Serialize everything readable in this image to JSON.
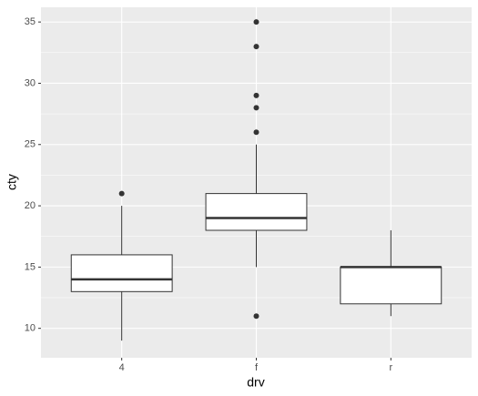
{
  "chart_data": {
    "type": "box",
    "x_label": "drv",
    "y_label": "cty",
    "categories": [
      "4",
      "f",
      "r"
    ],
    "boxes": [
      {
        "low": 9,
        "q1": 13,
        "median": 14,
        "q3": 16,
        "high": 20,
        "outliers": [
          21
        ]
      },
      {
        "low": 15,
        "q1": 18,
        "median": 19,
        "q3": 21,
        "high": 25,
        "outliers": [
          35,
          33,
          29,
          28,
          26,
          11
        ]
      },
      {
        "low": 11,
        "q1": 12,
        "median": 15,
        "q3": 15,
        "high": 18,
        "outliers": []
      }
    ],
    "ylim": [
      7.6,
      36.2
    ],
    "yticks": [
      10,
      15,
      20,
      25,
      30,
      35
    ],
    "minor_yticks": [
      12.5,
      17.5,
      22.5,
      27.5,
      32.5
    ],
    "grid": true,
    "panel_color": "#ebebeb",
    "box_fill": "#ffffff",
    "line_color": "#333333"
  }
}
